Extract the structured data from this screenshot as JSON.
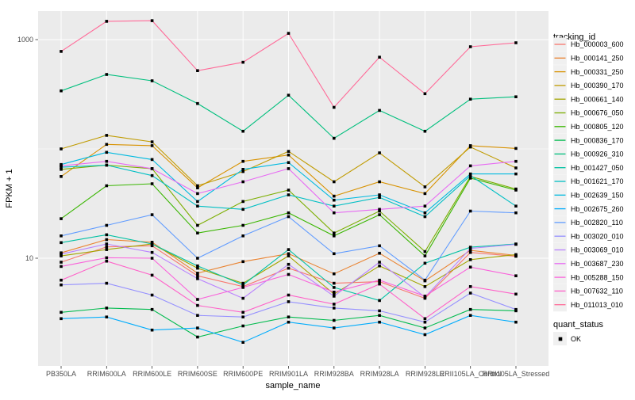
{
  "figure": {
    "background": "#FFFFFF",
    "panel_background": "#EBEBEB",
    "grid_color": "#FFFFFF",
    "tick_color": "#333333",
    "tick_label_color": "#4D4D4D",
    "point_color": "#000000",
    "legend_key_fill": "#F0F0F0"
  },
  "axes": {
    "x_title": "sample_name",
    "y_title": "FPKM + 1",
    "y_tick_labels": [
      "1000",
      "10"
    ]
  },
  "legend": {
    "tracking_title": "tracking_id",
    "quant_title": "quant_status",
    "quant_ok_label": "OK"
  },
  "chart_data": {
    "type": "line",
    "title": "",
    "xlabel": "sample_name",
    "ylabel": "FPKM + 1",
    "x_categories": [
      "PB350LA",
      "RRIM600LA",
      "RRIM600LE",
      "RRIM600SE",
      "RRIM600PE",
      "RRIM901LA",
      "RRIM928BA",
      "RRIM928LA",
      "RRIM928LE",
      "RRII105LA_Control",
      "RRII105LA_Stressed"
    ],
    "y_scale": "log10",
    "y_breaks": [
      10,
      1000
    ],
    "y_minor_breaks": [
      100
    ],
    "y_range": [
      1.03,
      1820
    ],
    "grid": true,
    "legend_position": "right",
    "legend_title": "tracking_id",
    "quant_status": {
      "title": "quant_status",
      "value": "OK"
    },
    "point_shape": "filled-square",
    "series": [
      {
        "name": "Hb_000003_600",
        "color": "#F8766D",
        "values": [
          9.2,
          12.7,
          13,
          6.9,
          5.5,
          8.1,
          5.9,
          6.1,
          4.3,
          11.3,
          10.4
        ]
      },
      {
        "name": "Hb_000141_250",
        "color": "#EA8331",
        "values": [
          11.2,
          14.8,
          14,
          7.3,
          9.3,
          11,
          7.2,
          11.1,
          6.2,
          11.8,
          10.6
        ]
      },
      {
        "name": "Hb_000331_250",
        "color": "#D89200",
        "values": [
          56,
          110,
          107,
          44,
          77,
          88,
          37,
          50,
          39,
          107,
          101
        ]
      },
      {
        "name": "Hb_000390_170",
        "color": "#C09B00",
        "values": [
          100,
          133,
          116,
          46,
          62,
          95,
          50,
          92,
          45,
          104,
          67
        ]
      },
      {
        "name": "Hb_000661_140",
        "color": "#A3A500",
        "values": [
          10.5,
          12,
          13.5,
          8.1,
          5.9,
          10.5,
          4.7,
          8.5,
          5.5,
          9.7,
          10.8
        ]
      },
      {
        "name": "Hb_000676_050",
        "color": "#7CAE00",
        "values": [
          65,
          71,
          66,
          20,
          33,
          42,
          17,
          27,
          11.5,
          56,
          43
        ]
      },
      {
        "name": "Hb_000805_120",
        "color": "#39B600",
        "values": [
          23,
          46,
          48,
          17,
          20,
          26,
          16,
          25,
          10.5,
          54,
          42
        ]
      },
      {
        "name": "Hb_000836_170",
        "color": "#00BB4E",
        "values": [
          3.2,
          3.5,
          3.4,
          1.9,
          2.4,
          2.9,
          2.7,
          3.0,
          2.3,
          3.4,
          3.3
        ]
      },
      {
        "name": "Hb_000926_310",
        "color": "#00BF7D",
        "values": [
          340,
          480,
          420,
          260,
          145,
          310,
          125,
          225,
          145,
          285,
          300
        ]
      },
      {
        "name": "Hb_001427_050",
        "color": "#00C1A3",
        "values": [
          13.9,
          16.4,
          13.5,
          8.5,
          5.7,
          12,
          5.4,
          4.1,
          9,
          12.6,
          13.5
        ]
      },
      {
        "name": "Hb_001621_170",
        "color": "#00BFC4",
        "values": [
          68,
          71,
          57,
          30,
          28,
          38,
          30,
          36,
          24,
          57,
          30
        ]
      },
      {
        "name": "Hb_002639_150",
        "color": "#00BAE0",
        "values": [
          72,
          93,
          80,
          33,
          65,
          75,
          34,
          38,
          26,
          59,
          59
        ]
      },
      {
        "name": "Hb_002675_260",
        "color": "#00ACFC",
        "values": [
          2.8,
          2.9,
          2.2,
          2.3,
          1.7,
          2.6,
          2.3,
          2.6,
          2.0,
          3.0,
          2.6
        ]
      },
      {
        "name": "Hb_002820_110",
        "color": "#619CFF",
        "values": [
          16,
          20,
          25,
          10,
          16,
          24,
          11,
          13,
          6.3,
          27,
          26
        ]
      },
      {
        "name": "Hb_003020_010",
        "color": "#9590FF",
        "values": [
          5.7,
          5.9,
          4.6,
          3.0,
          2.9,
          4.0,
          3.5,
          3.3,
          2.6,
          4.8,
          3.4
        ]
      },
      {
        "name": "Hb_003069_010",
        "color": "#B983FF",
        "values": [
          10.9,
          13.5,
          11.3,
          6.5,
          4.3,
          8.8,
          4.5,
          9.2,
          4.4,
          12.3,
          13.4
        ]
      },
      {
        "name": "Hb_003687_230",
        "color": "#E76BF3",
        "values": [
          70,
          77,
          66,
          39,
          50,
          66,
          26,
          28,
          30,
          70,
          77
        ]
      },
      {
        "name": "Hb_005288_150",
        "color": "#FA62DB",
        "values": [
          8.4,
          10.1,
          10,
          4.2,
          5.4,
          7.1,
          4.9,
          6.3,
          4.5,
          8.3,
          6.9
        ]
      },
      {
        "name": "Hb_007632_110",
        "color": "#FF61C9",
        "values": [
          6.3,
          9.4,
          7.0,
          3.7,
          3.2,
          4.6,
          3.8,
          5.8,
          2.8,
          5.5,
          4.7
        ]
      },
      {
        "name": "Hb_011013_010",
        "color": "#FF6A98",
        "values": [
          780,
          1470,
          1490,
          520,
          620,
          1140,
          240,
          690,
          320,
          860,
          935
        ]
      }
    ]
  }
}
